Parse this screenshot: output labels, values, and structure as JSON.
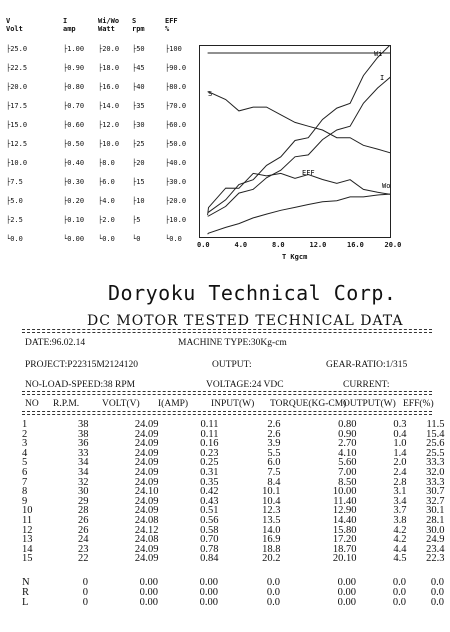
{
  "scales": {
    "headers": [
      {
        "name": "V",
        "unit": "Volt"
      },
      {
        "name": "I",
        "unit": "amp"
      },
      {
        "name": "Wi/Wo",
        "unit": "Watt"
      },
      {
        "name": "S",
        "unit": "rpm"
      },
      {
        "name": "EFF",
        "unit": "%"
      }
    ],
    "ticks": [
      [
        "25.0",
        "1.00",
        "20.0",
        "50",
        "100"
      ],
      [
        "22.5",
        "0.90",
        "18.0",
        "45",
        "90.0"
      ],
      [
        "20.0",
        "0.80",
        "16.0",
        "40",
        "80.0"
      ],
      [
        "17.5",
        "0.70",
        "14.0",
        "35",
        "70.0"
      ],
      [
        "15.0",
        "0.60",
        "12.0",
        "30",
        "60.0"
      ],
      [
        "12.5",
        "0.50",
        "10.0",
        "25",
        "50.0"
      ],
      [
        "10.0",
        "0.40",
        "8.0",
        "20",
        "40.0"
      ],
      [
        "7.5",
        "0.30",
        "6.0",
        "15",
        "30.0"
      ],
      [
        "5.0",
        "0.20",
        "4.0",
        "10",
        "20.0"
      ],
      [
        "2.5",
        "0.10",
        "2.0",
        "5",
        "10.0"
      ],
      [
        "0.0",
        "0.00",
        "0.0",
        "0",
        "0.0"
      ]
    ]
  },
  "chart_data": {
    "type": "line",
    "xlabel": "T Kgcm",
    "x_ticks": [
      "0.0",
      "4.0",
      "8.0",
      "12.0",
      "16.0",
      "20.0"
    ],
    "xlim": [
      0,
      20
    ],
    "series": [
      {
        "name": "Wi",
        "axis": "Wi/Wo",
        "ylim": [
          0,
          20
        ],
        "x": [
          0.8,
          0.9,
          2.7,
          4.1,
          5.6,
          7.0,
          8.5,
          10.0,
          11.4,
          12.9,
          14.4,
          15.8,
          17.2,
          18.7,
          20.1
        ],
        "y": [
          2.6,
          2.6,
          3.9,
          5.5,
          6.0,
          7.5,
          8.4,
          10.1,
          10.4,
          12.3,
          13.5,
          14.0,
          16.9,
          18.8,
          20.2
        ]
      },
      {
        "name": "I",
        "axis": "I",
        "ylim": [
          0,
          1
        ],
        "x": [
          0.8,
          0.9,
          2.7,
          4.1,
          5.6,
          7.0,
          8.5,
          10.0,
          11.4,
          12.9,
          14.4,
          15.8,
          17.2,
          18.7,
          20.1
        ],
        "y": [
          0.11,
          0.11,
          0.16,
          0.23,
          0.25,
          0.31,
          0.35,
          0.42,
          0.43,
          0.51,
          0.56,
          0.58,
          0.7,
          0.78,
          0.84
        ]
      },
      {
        "name": "S",
        "axis": "S",
        "ylim": [
          0,
          50
        ],
        "x": [
          0.8,
          0.9,
          2.7,
          4.1,
          5.6,
          7.0,
          8.5,
          10.0,
          11.4,
          12.9,
          14.4,
          15.8,
          17.2,
          18.7,
          20.1
        ],
        "y": [
          38,
          38,
          36,
          33,
          34,
          34,
          32,
          30,
          29,
          28,
          26,
          26,
          24,
          23,
          22
        ]
      },
      {
        "name": "EFF",
        "axis": "EFF",
        "ylim": [
          0,
          100
        ],
        "x": [
          0.8,
          0.9,
          2.7,
          4.1,
          5.6,
          7.0,
          8.5,
          10.0,
          11.4,
          12.9,
          14.4,
          15.8,
          17.2,
          18.7,
          20.1
        ],
        "y": [
          11.5,
          15.4,
          25.6,
          25.5,
          33.3,
          32.0,
          33.3,
          30.7,
          32.7,
          30.1,
          28.1,
          30.0,
          24.9,
          23.4,
          22.3
        ]
      },
      {
        "name": "Wo",
        "axis": "Wi/Wo",
        "ylim": [
          0,
          20
        ],
        "x": [
          0.8,
          0.9,
          2.7,
          4.1,
          5.6,
          7.0,
          8.5,
          10.0,
          11.4,
          12.9,
          14.4,
          15.8,
          17.2,
          18.7,
          20.1
        ],
        "y": [
          0.3,
          0.4,
          1.0,
          1.4,
          2.0,
          2.4,
          2.8,
          3.1,
          3.4,
          3.7,
          3.8,
          4.2,
          4.2,
          4.4,
          4.5
        ]
      },
      {
        "name": "V",
        "axis": "V",
        "ylim": [
          0,
          25
        ],
        "x": [
          0.8,
          20.1
        ],
        "y": [
          24.09,
          24.09
        ]
      }
    ]
  },
  "company": "Doryoku Technical Corp.",
  "report_title": "DC MOTOR TESTED TECHNICAL DATA",
  "meta": {
    "date": "DATE:96.02.14",
    "machine_type": "MACHINE TYPE:30Kg-cm",
    "project": "PROJECT:P22315M2124120",
    "output": "OUTPUT:",
    "gear_ratio": "GEAR-RATIO:1/315",
    "no_load_speed": "NO-LOAD-SPEED:38 RPM",
    "voltage": "VOLTAGE:24 VDC",
    "current": "CURRENT:"
  },
  "columns": [
    "NO",
    "R.P.M.",
    "VOLT(V)",
    "I(AMP)",
    "INPUT(W)",
    "TORQUE(KG-CM)",
    "OUTPUT(W)",
    "EFF(%)"
  ],
  "rows": [
    [
      "1",
      "38",
      "24.09",
      "0.11",
      "2.6",
      "0.80",
      "0.3",
      "11.5"
    ],
    [
      "2",
      "38",
      "24.09",
      "0.11",
      "2.6",
      "0.90",
      "0.4",
      "15.4"
    ],
    [
      "3",
      "36",
      "24.09",
      "0.16",
      "3.9",
      "2.70",
      "1.0",
      "25.6"
    ],
    [
      "4",
      "33",
      "24.09",
      "0.23",
      "5.5",
      "4.10",
      "1.4",
      "25.5"
    ],
    [
      "5",
      "34",
      "24.09",
      "0.25",
      "6.0",
      "5.60",
      "2.0",
      "33.3"
    ],
    [
      "6",
      "34",
      "24.09",
      "0.31",
      "7.5",
      "7.00",
      "2.4",
      "32.0"
    ],
    [
      "7",
      "32",
      "24.09",
      "0.35",
      "8.4",
      "8.50",
      "2.8",
      "33.3"
    ],
    [
      "8",
      "30",
      "24.10",
      "0.42",
      "10.1",
      "10.00",
      "3.1",
      "30.7"
    ],
    [
      "9",
      "29",
      "24.09",
      "0.43",
      "10.4",
      "11.40",
      "3.4",
      "32.7"
    ],
    [
      "10",
      "28",
      "24.09",
      "0.51",
      "12.3",
      "12.90",
      "3.7",
      "30.1"
    ],
    [
      "11",
      "26",
      "24.08",
      "0.56",
      "13.5",
      "14.40",
      "3.8",
      "28.1"
    ],
    [
      "12",
      "26",
      "24.12",
      "0.58",
      "14.0",
      "15.80",
      "4.2",
      "30.0"
    ],
    [
      "13",
      "24",
      "24.08",
      "0.70",
      "16.9",
      "17.20",
      "4.2",
      "24.9"
    ],
    [
      "14",
      "23",
      "24.09",
      "0.78",
      "18.8",
      "18.70",
      "4.4",
      "23.4"
    ],
    [
      "15",
      "22",
      "24.09",
      "0.84",
      "20.2",
      "20.10",
      "4.5",
      "22.3"
    ]
  ],
  "extra_rows": [
    [
      "N",
      "0",
      "0.00",
      "0.00",
      "0.0",
      "0.00",
      "0.0",
      "0.0"
    ],
    [
      "R",
      "0",
      "0.00",
      "0.00",
      "0.0",
      "0.00",
      "0.0",
      "0.0"
    ],
    [
      "L",
      "0",
      "0.00",
      "0.00",
      "0.0",
      "0.00",
      "0.0",
      "0.0"
    ]
  ]
}
